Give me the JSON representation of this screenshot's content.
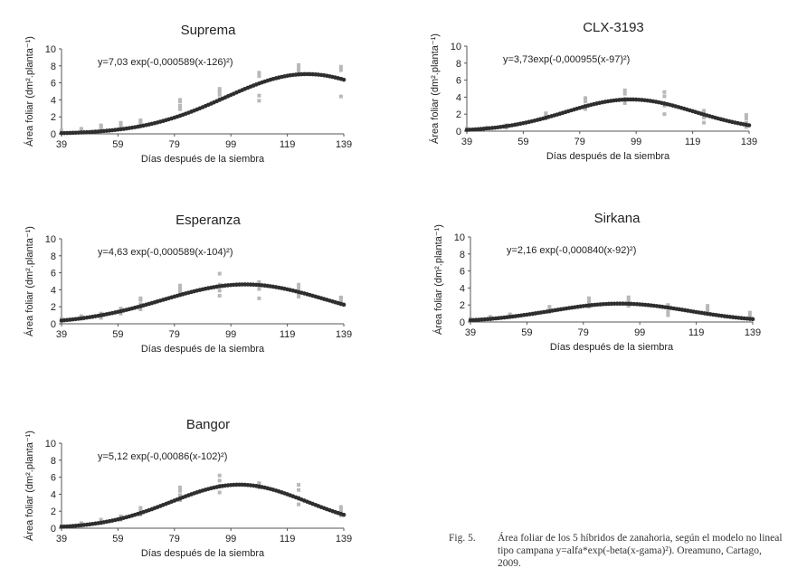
{
  "chart_data": [
    {
      "type": "scatter",
      "title": "Suprema",
      "equation": "y=7,03 exp(-0,000589(x-126)²)",
      "xlabel": "Días después de la siembra",
      "ylabel": "Área foliar (dm².planta⁻¹)",
      "xlim": [
        39,
        139
      ],
      "ylim": [
        0,
        10
      ],
      "xticks": [
        39,
        59,
        79,
        99,
        119,
        139
      ],
      "yticks": [
        0,
        2,
        4,
        6,
        8,
        10
      ],
      "grid": false,
      "model": {
        "a": 7.03,
        "b": 0.000589,
        "c": 126
      },
      "observed": [
        {
          "x": 39,
          "y": [
            0.2,
            0.3,
            0.4
          ]
        },
        {
          "x": 46,
          "y": [
            0.4,
            0.5,
            0.6
          ]
        },
        {
          "x": 53,
          "y": [
            0.7,
            0.9,
            1.0
          ]
        },
        {
          "x": 60,
          "y": [
            0.9,
            1.1,
            1.3
          ]
        },
        {
          "x": 67,
          "y": [
            1.2,
            1.4,
            1.6
          ]
        },
        {
          "x": 81,
          "y": [
            2.9,
            3.3,
            3.8,
            4.0
          ]
        },
        {
          "x": 95,
          "y": [
            4.1,
            4.6,
            5.0,
            5.3
          ]
        },
        {
          "x": 109,
          "y": [
            3.9,
            4.5,
            6.8,
            7.2
          ]
        },
        {
          "x": 123,
          "y": [
            7.0,
            7.4,
            7.8,
            8.1
          ]
        },
        {
          "x": 138,
          "y": [
            4.4,
            6.5,
            7.5,
            7.9
          ]
        }
      ]
    },
    {
      "type": "scatter",
      "title": "CLX-3193",
      "equation": "y=3,73exp(-0,000955(x-97)²)",
      "xlabel": "Días después de la siembra",
      "ylabel": "Área foliar (dm².planta⁻¹)",
      "xlim": [
        39,
        139
      ],
      "ylim": [
        0,
        10
      ],
      "xticks": [
        39,
        59,
        79,
        99,
        119,
        139
      ],
      "yticks": [
        0,
        2,
        4,
        6,
        8,
        10
      ],
      "grid": false,
      "model": {
        "a": 3.73,
        "b": 0.000955,
        "c": 97
      },
      "observed": [
        {
          "x": 39,
          "y": [
            0.1,
            0.2,
            0.3
          ]
        },
        {
          "x": 46,
          "y": [
            0.2,
            0.3,
            0.4
          ]
        },
        {
          "x": 53,
          "y": [
            0.4,
            0.6,
            0.7
          ]
        },
        {
          "x": 67,
          "y": [
            1.5,
            1.8,
            2.1
          ]
        },
        {
          "x": 81,
          "y": [
            2.6,
            3.0,
            3.5,
            3.9
          ]
        },
        {
          "x": 95,
          "y": [
            3.3,
            3.8,
            4.4,
            4.8
          ]
        },
        {
          "x": 109,
          "y": [
            2.0,
            3.0,
            4.1,
            4.6
          ]
        },
        {
          "x": 123,
          "y": [
            1.0,
            1.6,
            2.0,
            2.4
          ]
        },
        {
          "x": 138,
          "y": [
            0.5,
            1.0,
            1.5,
            1.9
          ]
        }
      ]
    },
    {
      "type": "scatter",
      "title": "Esperanza",
      "equation": "y=4,63 exp(-0,000589(x-104)²)",
      "xlabel": "Días después de la siembra",
      "ylabel": "Área foliar (dm².planta⁻¹)",
      "xlim": [
        39,
        139
      ],
      "ylim": [
        0,
        10
      ],
      "xticks": [
        39,
        59,
        79,
        99,
        119,
        139
      ],
      "yticks": [
        0,
        2,
        4,
        6,
        8,
        10
      ],
      "grid": false,
      "model": {
        "a": 4.63,
        "b": 0.000589,
        "c": 104
      },
      "observed": [
        {
          "x": 39,
          "y": [
            0.3,
            0.5,
            0.6
          ]
        },
        {
          "x": 46,
          "y": [
            0.6,
            0.8,
            0.9
          ]
        },
        {
          "x": 53,
          "y": [
            0.7,
            1.0,
            1.2
          ]
        },
        {
          "x": 60,
          "y": [
            1.2,
            1.5,
            1.8
          ]
        },
        {
          "x": 67,
          "y": [
            1.7,
            2.3,
            2.8,
            3.0
          ]
        },
        {
          "x": 81,
          "y": [
            3.7,
            4.0,
            4.3,
            4.5
          ]
        },
        {
          "x": 95,
          "y": [
            3.3,
            3.9,
            4.6,
            5.9
          ]
        },
        {
          "x": 109,
          "y": [
            3.0,
            4.1,
            4.6,
            4.9
          ]
        },
        {
          "x": 123,
          "y": [
            3.2,
            3.6,
            4.2,
            4.6
          ]
        },
        {
          "x": 138,
          "y": [
            2.3,
            2.6,
            3.0,
            3.1
          ]
        }
      ]
    },
    {
      "type": "scatter",
      "title": "Sirkana",
      "equation": "y=2,16 exp(-0,000840(x-92)²)",
      "xlabel": "Días después de la siembra",
      "ylabel": "Área foliar (dm².planta⁻¹)",
      "xlim": [
        39,
        139
      ],
      "ylim": [
        0,
        10
      ],
      "xticks": [
        39,
        59,
        79,
        99,
        119,
        139
      ],
      "yticks": [
        0,
        2,
        4,
        6,
        8,
        10
      ],
      "grid": false,
      "model": {
        "a": 2.16,
        "b": 0.00084,
        "c": 92
      },
      "observed": [
        {
          "x": 39,
          "y": [
            0.2,
            0.3,
            0.4
          ]
        },
        {
          "x": 46,
          "y": [
            0.3,
            0.5,
            0.6
          ]
        },
        {
          "x": 53,
          "y": [
            0.6,
            0.7,
            0.9
          ]
        },
        {
          "x": 67,
          "y": [
            1.2,
            1.5,
            1.8
          ]
        },
        {
          "x": 81,
          "y": [
            1.8,
            2.2,
            2.5,
            2.8
          ]
        },
        {
          "x": 95,
          "y": [
            1.9,
            2.3,
            2.6,
            2.9
          ]
        },
        {
          "x": 109,
          "y": [
            0.8,
            1.2,
            1.8,
            2.0
          ]
        },
        {
          "x": 123,
          "y": [
            1.0,
            1.3,
            1.6,
            1.9
          ]
        },
        {
          "x": 138,
          "y": [
            0.5,
            0.8,
            1.1
          ]
        }
      ]
    },
    {
      "type": "scatter",
      "title": "Bangor",
      "equation": "y=5,12 exp(-0,00086(x-102)²)",
      "xlabel": "Días después de la siembra",
      "ylabel": "Área foliar (dm².planta⁻¹)",
      "xlim": [
        39,
        139
      ],
      "ylim": [
        0,
        10
      ],
      "xticks": [
        39,
        59,
        79,
        99,
        119,
        139
      ],
      "yticks": [
        0,
        2,
        4,
        6,
        8,
        10
      ],
      "grid": false,
      "model": {
        "a": 5.12,
        "b": 0.00086,
        "c": 102
      },
      "observed": [
        {
          "x": 39,
          "y": [
            0.1,
            0.2,
            0.3
          ]
        },
        {
          "x": 46,
          "y": [
            0.3,
            0.5,
            0.6
          ]
        },
        {
          "x": 53,
          "y": [
            0.6,
            0.8,
            1.0
          ]
        },
        {
          "x": 60,
          "y": [
            1.0,
            1.2,
            1.4
          ]
        },
        {
          "x": 67,
          "y": [
            1.6,
            2.0,
            2.4
          ]
        },
        {
          "x": 81,
          "y": [
            3.3,
            3.9,
            4.4,
            4.8
          ]
        },
        {
          "x": 95,
          "y": [
            4.2,
            5.0,
            5.6,
            6.2
          ]
        },
        {
          "x": 109,
          "y": [
            4.8,
            5.1,
            5.3
          ]
        },
        {
          "x": 123,
          "y": [
            2.8,
            3.6,
            4.5,
            5.1
          ]
        },
        {
          "x": 138,
          "y": [
            1.5,
            1.8,
            2.1,
            2.5
          ]
        }
      ]
    }
  ],
  "caption": {
    "number": "Fig. 5.",
    "text": "Área foliar de los 5 híbridos de zanahoria, según el modelo no lineal tipo campana y=alfa*exp(-beta(x-gama)²). Oreamuno, Cartago, 2009."
  }
}
